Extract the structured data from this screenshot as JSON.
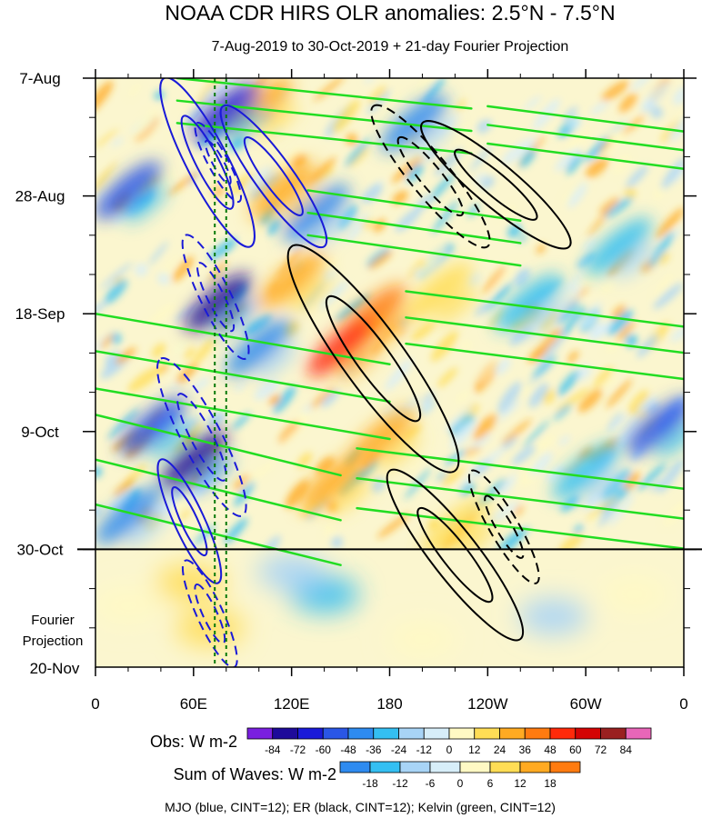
{
  "chart_data": {
    "type": "heatmap",
    "title": "NOAA CDR HIRS OLR anomalies: 2.5°N - 7.5°N",
    "subtitle": "7-Aug-2019 to 30-Oct-2019 + 21-day Fourier Projection",
    "x_axis": {
      "label": "",
      "ticks": [
        {
          "label": "0",
          "lon": 0
        },
        {
          "label": "60E",
          "lon": 60
        },
        {
          "label": "120E",
          "lon": 120
        },
        {
          "label": "180",
          "lon": 180
        },
        {
          "label": "120W",
          "lon": 240
        },
        {
          "label": "60W",
          "lon": 300
        },
        {
          "label": "0",
          "lon": 360
        }
      ],
      "range": [
        0,
        360
      ]
    },
    "y_axis": {
      "label": "",
      "ticks": [
        {
          "label": "7-Aug",
          "day": 0
        },
        {
          "label": "28-Aug",
          "day": 21
        },
        {
          "label": "18-Sep",
          "day": 42
        },
        {
          "label": "9-Oct",
          "day": 63
        },
        {
          "label": "30-Oct",
          "day": 84
        }
      ],
      "range_days": [
        0,
        105
      ],
      "end_label": "20-Nov"
    },
    "projection_label": [
      "Fourier",
      "Projection"
    ],
    "observation_end_day": 84,
    "dashed_reference_lons": [
      73,
      80
    ],
    "legends": {
      "obs": {
        "label": "Obs: W m-2",
        "levels": [
          -84,
          -72,
          -60,
          -48,
          -36,
          -24,
          -12,
          0,
          12,
          24,
          36,
          48,
          60,
          72,
          84
        ],
        "colors": [
          "#7a1fe0",
          "#1e0a9a",
          "#1a1ad8",
          "#2a56e6",
          "#2e8bf0",
          "#34bff2",
          "#a8d4f6",
          "#d7eef9",
          "#fff9c4",
          "#ffdd55",
          "#ffaa22",
          "#ff7b10",
          "#ff2a0a",
          "#d40404",
          "#9a2020",
          "#e866b8"
        ]
      },
      "waves": {
        "label": "Sum of Waves: W m-2",
        "levels": [
          -18,
          -12,
          -6,
          0,
          6,
          12,
          18
        ],
        "colors": [
          "#2e8bf0",
          "#34bff2",
          "#a8d4f6",
          "#d7eef9",
          "#fff9c4",
          "#ffdd55",
          "#ffaa22",
          "#ff7b10"
        ]
      }
    },
    "contour_note": "MJO (blue, CINT=12); ER (black, CINT=12); Kelvin (green, CINT=12)",
    "contours": {
      "mjo": {
        "color": "#1a1ad8",
        "cint": 12,
        "signals": [
          {
            "lon": [
              42,
              95
            ],
            "day": [
              0,
              30
            ],
            "sign": 1
          },
          {
            "lon": [
              78,
              140
            ],
            "day": [
              5,
              30
            ],
            "sign": 1
          },
          {
            "lon": [
              40,
              75
            ],
            "day": [
              68,
              90
            ],
            "sign": 1
          },
          {
            "lon": [
              62,
              88
            ],
            "day": [
              8,
              22
            ],
            "sign": -1
          },
          {
            "lon": [
              55,
              92
            ],
            "day": [
              28,
              50
            ],
            "sign": -1
          },
          {
            "lon": [
              40,
              90
            ],
            "day": [
              50,
              78
            ],
            "sign": -1
          },
          {
            "lon": [
              55,
              85
            ],
            "day": [
              86,
              105
            ],
            "sign": -1
          }
        ]
      },
      "er": {
        "color": "#000000",
        "cint": 12,
        "signals": [
          {
            "lon": [
              200,
              290
            ],
            "day": [
              8,
              30
            ],
            "sign": 1
          },
          {
            "lon": [
              120,
              220
            ],
            "day": [
              30,
              70
            ],
            "sign": 1
          },
          {
            "lon": [
              180,
              260
            ],
            "day": [
              70,
              100
            ],
            "sign": 1
          },
          {
            "lon": [
              170,
              240
            ],
            "day": [
              5,
              30
            ],
            "sign": -1
          },
          {
            "lon": [
              230,
              270
            ],
            "day": [
              70,
              90
            ],
            "sign": -1
          }
        ]
      },
      "kelvin": {
        "color": "#22dd22",
        "cint": 12,
        "bands": [
          {
            "lon": [
              50,
              230
            ],
            "day": [
              0,
              12
            ]
          },
          {
            "lon": [
              240,
              360
            ],
            "day": [
              5,
              15
            ]
          },
          {
            "lon": [
              130,
              260
            ],
            "day": [
              20,
              32
            ]
          },
          {
            "lon": [
              0,
              180
            ],
            "day": [
              42,
              62
            ]
          },
          {
            "lon": [
              190,
              360
            ],
            "day": [
              38,
              52
            ]
          },
          {
            "lon": [
              0,
              150
            ],
            "day": [
              60,
              84
            ]
          },
          {
            "lon": [
              160,
              360
            ],
            "day": [
              66,
              82
            ]
          }
        ]
      }
    },
    "anomaly_features": [
      {
        "lon": 170,
        "day": 42,
        "value": 48
      },
      {
        "lon": 150,
        "day": 48,
        "value": 60
      },
      {
        "lon": 120,
        "day": 36,
        "value": 36
      },
      {
        "lon": 115,
        "day": 20,
        "value": 30
      },
      {
        "lon": 145,
        "day": 72,
        "value": 36
      },
      {
        "lon": 175,
        "day": 64,
        "value": 30
      },
      {
        "lon": 220,
        "day": 80,
        "value": 24
      },
      {
        "lon": 100,
        "day": 5,
        "value": 30
      },
      {
        "lon": 210,
        "day": 38,
        "value": 24
      },
      {
        "lon": 80,
        "day": 6,
        "value": -60
      },
      {
        "lon": 75,
        "day": 40,
        "value": -72
      },
      {
        "lon": 60,
        "day": 68,
        "value": -72
      },
      {
        "lon": 20,
        "day": 20,
        "value": -48
      },
      {
        "lon": 35,
        "day": 62,
        "value": -48
      },
      {
        "lon": 100,
        "day": 48,
        "value": -36
      },
      {
        "lon": 20,
        "day": 78,
        "value": -36
      },
      {
        "lon": 195,
        "day": 8,
        "value": -36
      },
      {
        "lon": 345,
        "day": 62,
        "value": -48
      },
      {
        "lon": 265,
        "day": 40,
        "value": -24
      },
      {
        "lon": 300,
        "day": 70,
        "value": -24
      },
      {
        "lon": 320,
        "day": 30,
        "value": -24
      },
      {
        "lon": 135,
        "day": 24,
        "value": -36
      }
    ],
    "projection_features": [
      {
        "lon": 58,
        "day": 90,
        "value": 12
      },
      {
        "lon": 20,
        "day": 94,
        "value": 6
      },
      {
        "lon": 70,
        "day": 98,
        "value": 12
      },
      {
        "lon": 140,
        "day": 92,
        "value": -12
      },
      {
        "lon": 120,
        "day": 88,
        "value": -6
      },
      {
        "lon": 280,
        "day": 96,
        "value": -6
      },
      {
        "lon": 330,
        "day": 92,
        "value": 6
      },
      {
        "lon": 200,
        "day": 100,
        "value": 6
      }
    ]
  }
}
